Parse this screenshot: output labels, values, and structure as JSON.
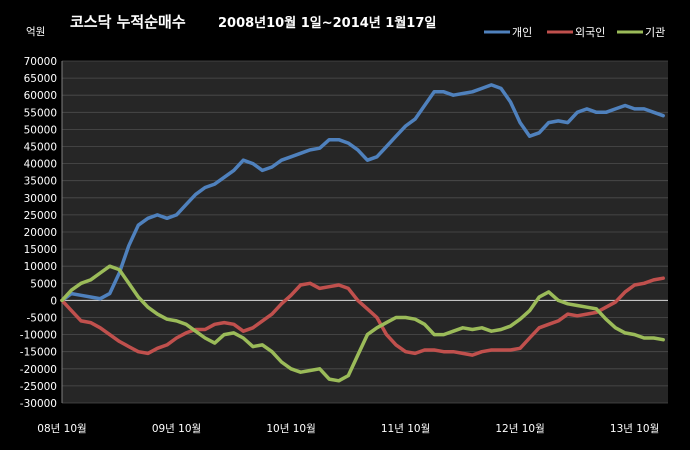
{
  "chart_data": {
    "type": "line",
    "title_main": "코스닥 누적순매수",
    "title_period": "2008년10월 1일~2014년 1월17일",
    "ylabel": "억원",
    "xlabel": "",
    "ylim": [
      -30000,
      70000
    ],
    "yticks": [
      70000,
      65000,
      60000,
      55000,
      50000,
      45000,
      40000,
      35000,
      30000,
      25000,
      20000,
      15000,
      10000,
      5000,
      0,
      -5000,
      -10000,
      -15000,
      -20000,
      -25000,
      -30000
    ],
    "xlim": [
      0,
      63.5
    ],
    "xticks": [
      {
        "label": "08년 10월",
        "x": 0
      },
      {
        "label": "09년 10월",
        "x": 12
      },
      {
        "label": "10년 10월",
        "x": 24
      },
      {
        "label": "11년 10월",
        "x": 36
      },
      {
        "label": "12년 10월",
        "x": 48
      },
      {
        "label": "13년 10월",
        "x": 60
      }
    ],
    "grid": true,
    "legend_position": "top-right",
    "series": [
      {
        "name": "개인",
        "color": "#4f81bd",
        "points": [
          [
            0,
            0
          ],
          [
            1,
            2000
          ],
          [
            2,
            1500
          ],
          [
            3,
            1000
          ],
          [
            4,
            500
          ],
          [
            5,
            2000
          ],
          [
            6,
            8000
          ],
          [
            7,
            16000
          ],
          [
            8,
            22000
          ],
          [
            9,
            24000
          ],
          [
            10,
            25000
          ],
          [
            11,
            24000
          ],
          [
            12,
            25000
          ],
          [
            13,
            28000
          ],
          [
            14,
            31000
          ],
          [
            15,
            33000
          ],
          [
            16,
            34000
          ],
          [
            17,
            36000
          ],
          [
            18,
            38000
          ],
          [
            19,
            41000
          ],
          [
            20,
            40000
          ],
          [
            21,
            38000
          ],
          [
            22,
            39000
          ],
          [
            23,
            41000
          ],
          [
            24,
            42000
          ],
          [
            25,
            43000
          ],
          [
            26,
            44000
          ],
          [
            27,
            44500
          ],
          [
            28,
            47000
          ],
          [
            29,
            47000
          ],
          [
            30,
            46000
          ],
          [
            31,
            44000
          ],
          [
            32,
            41000
          ],
          [
            33,
            42000
          ],
          [
            34,
            45000
          ],
          [
            35,
            48000
          ],
          [
            36,
            51000
          ],
          [
            37,
            53000
          ],
          [
            38,
            57000
          ],
          [
            39,
            61000
          ],
          [
            40,
            61000
          ],
          [
            41,
            60000
          ],
          [
            42,
            60500
          ],
          [
            43,
            61000
          ],
          [
            44,
            62000
          ],
          [
            45,
            63000
          ],
          [
            46,
            62000
          ],
          [
            47,
            58000
          ],
          [
            48,
            52000
          ],
          [
            49,
            48000
          ],
          [
            50,
            49000
          ],
          [
            51,
            52000
          ],
          [
            52,
            52500
          ],
          [
            53,
            52000
          ],
          [
            54,
            55000
          ],
          [
            55,
            56000
          ],
          [
            56,
            55000
          ],
          [
            57,
            55000
          ],
          [
            58,
            56000
          ],
          [
            59,
            57000
          ],
          [
            60,
            56000
          ],
          [
            61,
            56000
          ],
          [
            62,
            55000
          ],
          [
            63,
            54000
          ]
        ]
      },
      {
        "name": "외국인",
        "color": "#c0504d",
        "points": [
          [
            0,
            0
          ],
          [
            1,
            -3000
          ],
          [
            2,
            -6000
          ],
          [
            3,
            -6500
          ],
          [
            4,
            -8000
          ],
          [
            5,
            -10000
          ],
          [
            6,
            -12000
          ],
          [
            7,
            -13500
          ],
          [
            8,
            -15000
          ],
          [
            9,
            -15500
          ],
          [
            10,
            -14000
          ],
          [
            11,
            -13000
          ],
          [
            12,
            -11000
          ],
          [
            13,
            -9500
          ],
          [
            14,
            -8500
          ],
          [
            15,
            -8500
          ],
          [
            16,
            -7000
          ],
          [
            17,
            -6500
          ],
          [
            18,
            -7000
          ],
          [
            19,
            -9000
          ],
          [
            20,
            -8000
          ],
          [
            21,
            -6000
          ],
          [
            22,
            -4000
          ],
          [
            23,
            -1000
          ],
          [
            24,
            1500
          ],
          [
            25,
            4500
          ],
          [
            26,
            5000
          ],
          [
            27,
            3500
          ],
          [
            28,
            4000
          ],
          [
            29,
            4500
          ],
          [
            30,
            3500
          ],
          [
            31,
            0
          ],
          [
            32,
            -2500
          ],
          [
            33,
            -5000
          ],
          [
            34,
            -10000
          ],
          [
            35,
            -13000
          ],
          [
            36,
            -15000
          ],
          [
            37,
            -15500
          ],
          [
            38,
            -14500
          ],
          [
            39,
            -14500
          ],
          [
            40,
            -15000
          ],
          [
            41,
            -15000
          ],
          [
            42,
            -15500
          ],
          [
            43,
            -16000
          ],
          [
            44,
            -15000
          ],
          [
            45,
            -14500
          ],
          [
            46,
            -14500
          ],
          [
            47,
            -14500
          ],
          [
            48,
            -14000
          ],
          [
            49,
            -11000
          ],
          [
            50,
            -8000
          ],
          [
            51,
            -7000
          ],
          [
            52,
            -6000
          ],
          [
            53,
            -4000
          ],
          [
            54,
            -4500
          ],
          [
            55,
            -4000
          ],
          [
            56,
            -3500
          ],
          [
            57,
            -2000
          ],
          [
            58,
            -500
          ],
          [
            59,
            2500
          ],
          [
            60,
            4500
          ],
          [
            61,
            5000
          ],
          [
            62,
            6000
          ],
          [
            63,
            6500
          ]
        ]
      },
      {
        "name": "기관",
        "color": "#9bbb59",
        "points": [
          [
            0,
            0
          ],
          [
            1,
            3000
          ],
          [
            2,
            5000
          ],
          [
            3,
            6000
          ],
          [
            4,
            8000
          ],
          [
            5,
            10000
          ],
          [
            6,
            9000
          ],
          [
            7,
            5000
          ],
          [
            8,
            1000
          ],
          [
            9,
            -2000
          ],
          [
            10,
            -4000
          ],
          [
            11,
            -5500
          ],
          [
            12,
            -6000
          ],
          [
            13,
            -7000
          ],
          [
            14,
            -9000
          ],
          [
            15,
            -11000
          ],
          [
            16,
            -12500
          ],
          [
            17,
            -10000
          ],
          [
            18,
            -9500
          ],
          [
            19,
            -11000
          ],
          [
            20,
            -13500
          ],
          [
            21,
            -13000
          ],
          [
            22,
            -15000
          ],
          [
            23,
            -18000
          ],
          [
            24,
            -20000
          ],
          [
            25,
            -21000
          ],
          [
            26,
            -20500
          ],
          [
            27,
            -20000
          ],
          [
            28,
            -23000
          ],
          [
            29,
            -23500
          ],
          [
            30,
            -22000
          ],
          [
            31,
            -16000
          ],
          [
            32,
            -10000
          ],
          [
            33,
            -8000
          ],
          [
            34,
            -6500
          ],
          [
            35,
            -5000
          ],
          [
            36,
            -5000
          ],
          [
            37,
            -5500
          ],
          [
            38,
            -7000
          ],
          [
            39,
            -10000
          ],
          [
            40,
            -10000
          ],
          [
            41,
            -9000
          ],
          [
            42,
            -8000
          ],
          [
            43,
            -8500
          ],
          [
            44,
            -8000
          ],
          [
            45,
            -9000
          ],
          [
            46,
            -8500
          ],
          [
            47,
            -7500
          ],
          [
            48,
            -5500
          ],
          [
            49,
            -3000
          ],
          [
            50,
            1000
          ],
          [
            51,
            2500
          ],
          [
            52,
            0
          ],
          [
            53,
            -1000
          ],
          [
            54,
            -1500
          ],
          [
            55,
            -2000
          ],
          [
            56,
            -2500
          ],
          [
            57,
            -5500
          ],
          [
            58,
            -8000
          ],
          [
            59,
            -9500
          ],
          [
            60,
            -10000
          ],
          [
            61,
            -11000
          ],
          [
            62,
            -11000
          ],
          [
            63,
            -11500
          ]
        ]
      }
    ]
  }
}
